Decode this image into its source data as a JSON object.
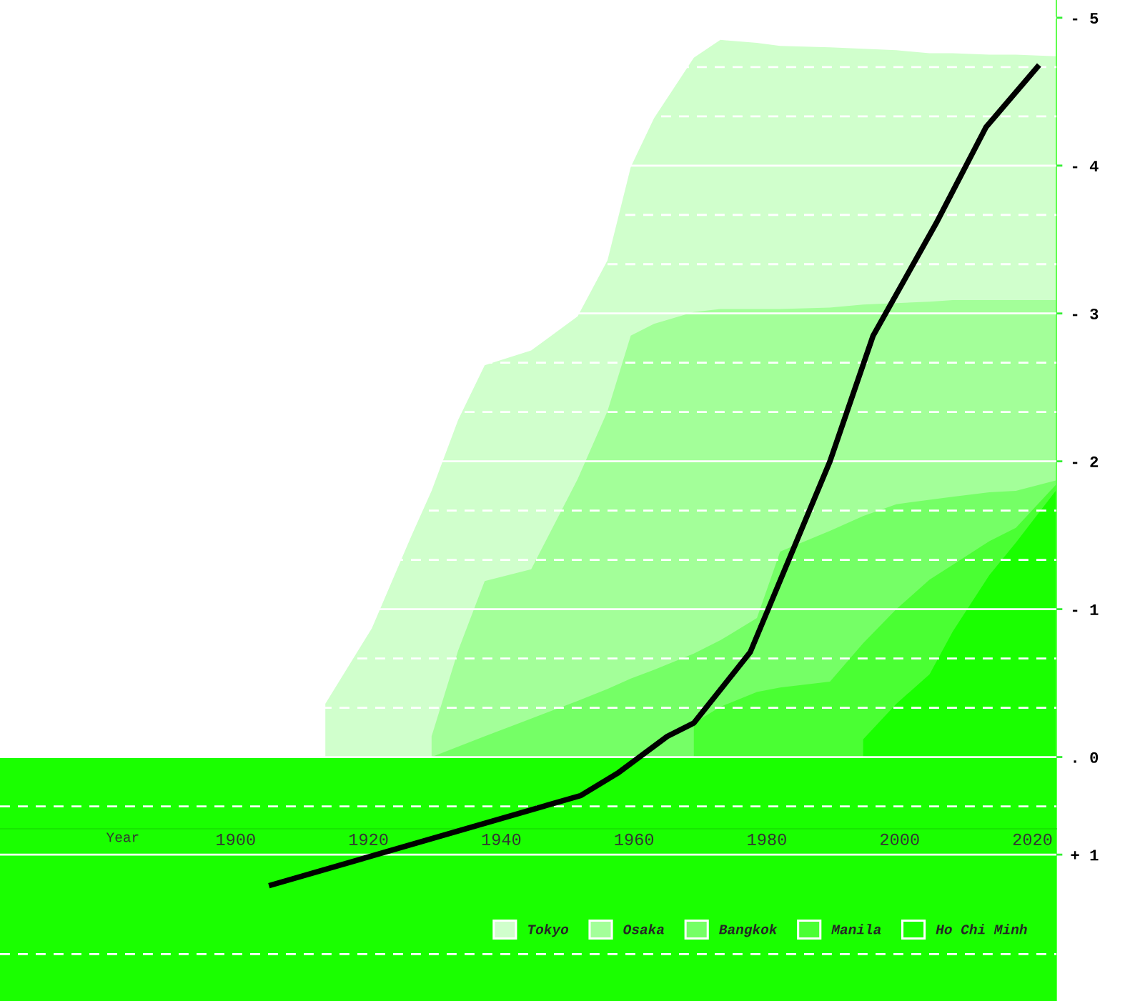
{
  "chart_data": {
    "type": "area",
    "xlabel": "Year",
    "x": [
      1913.5,
      1920.5,
      1926.5,
      1929.5,
      1933.5,
      1937.5,
      1944.5,
      1951.5,
      1956,
      1959.5,
      1963,
      1969,
      1973,
      1978.5,
      1982,
      1989.5,
      1994.5,
      1999.5,
      2004.5,
      2008,
      2013.5,
      2017.5,
      2023.5
    ],
    "xlim": [
      1864.5,
      2023.6
    ],
    "xticks": [
      1900,
      1920,
      1940,
      1960,
      1980,
      2000,
      2020
    ],
    "ylim": [
      1.65,
      -5.12
    ],
    "yticks": [
      {
        "value": -5,
        "label": "- 5"
      },
      {
        "value": -4,
        "label": "- 4"
      },
      {
        "value": -3,
        "label": "- 3"
      },
      {
        "value": -2,
        "label": "- 2"
      },
      {
        "value": -1,
        "label": "- 1"
      },
      {
        "value": 0,
        "label": ". 0"
      },
      {
        "value": 0.66,
        "label": "+ 1"
      }
    ],
    "grid": true,
    "legend": "bottom",
    "bands": [
      {
        "axis": "y",
        "from": 0,
        "to": 1.65,
        "color": "#1aff00"
      }
    ],
    "series": [
      {
        "name": "Tokyo",
        "color": "#d0ffcc",
        "values": [
          -0.36,
          -0.87,
          -1.5,
          -1.8,
          -2.28,
          -2.65,
          -2.75,
          -2.98,
          -3.36,
          -3.99,
          -4.32,
          -4.73,
          -4.85,
          -4.83,
          -4.81,
          -4.8,
          -4.79,
          -4.78,
          -4.76,
          -4.76,
          -4.75,
          -4.75,
          -4.74
        ]
      },
      {
        "name": "Osaka",
        "color": "#a3ff99",
        "values": [
          null,
          null,
          null,
          -0.14,
          -0.72,
          -1.19,
          -1.27,
          -1.88,
          -2.34,
          -2.85,
          -2.93,
          -3.01,
          -3.03,
          -3.03,
          -3.03,
          -3.04,
          -3.06,
          -3.07,
          -3.08,
          -3.09,
          -3.09,
          -3.09,
          -3.09
        ]
      },
      {
        "name": "Bangkok",
        "color": "#75ff66",
        "values": [
          null,
          null,
          null,
          0.0,
          -0.07,
          -0.14,
          -0.26,
          -0.38,
          -0.46,
          -0.53,
          -0.59,
          -0.7,
          -0.79,
          -0.94,
          -1.39,
          -1.53,
          -1.63,
          -1.71,
          -1.74,
          -1.76,
          -1.79,
          -1.8,
          -1.87
        ]
      },
      {
        "name": "Manila",
        "color": "#4aff33",
        "values": [
          null,
          null,
          null,
          null,
          null,
          null,
          null,
          null,
          null,
          null,
          null,
          -0.23,
          -0.34,
          -0.44,
          -0.47,
          -0.51,
          -0.77,
          -1.0,
          -1.2,
          -1.3,
          -1.46,
          -1.55,
          -1.84
        ]
      },
      {
        "name": "Ho Chi Minh",
        "color": "#1aff00",
        "values": [
          null,
          null,
          null,
          null,
          null,
          null,
          null,
          null,
          null,
          null,
          null,
          null,
          null,
          null,
          null,
          null,
          -0.12,
          -0.36,
          -0.56,
          -0.85,
          -1.23,
          -1.45,
          -1.8
        ]
      },
      {
        "type": "line",
        "color": "#000000",
        "x": [
          1905,
          1952,
          1957.5,
          1965,
          1969,
          1977.5,
          1989.5,
          1996,
          2005.5,
          2013,
          2021
        ],
        "values": [
          0.87,
          0.26,
          0.11,
          -0.14,
          -0.23,
          -0.71,
          -2.0,
          -2.85,
          -3.61,
          -4.26,
          -4.68
        ]
      }
    ]
  }
}
